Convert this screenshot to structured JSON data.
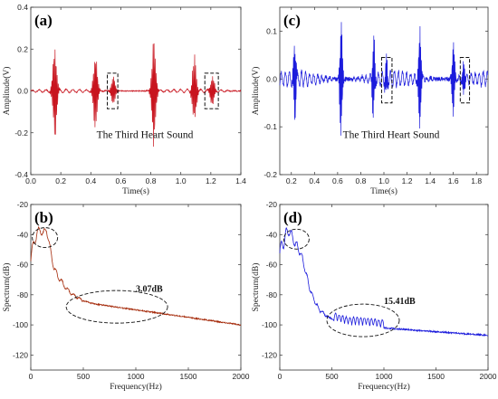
{
  "chart_data": [
    {
      "panel": "(a)",
      "type": "line",
      "color": "#c8141e",
      "xlabel": "Time(s)",
      "ylabel": "Amplitude(V)",
      "xlim": [
        0,
        1.4
      ],
      "ylim": [
        -0.4,
        0.4
      ],
      "xticks": [
        "0.0",
        "0.2",
        "0.4",
        "0.6",
        "0.8",
        "1.0",
        "1.2",
        "1.4"
      ],
      "yticks": [
        "0.4",
        "0.2",
        "0.0",
        "-0.2",
        "-0.4"
      ],
      "annotation": "The Third Heart Sound",
      "beats": [
        {
          "t": 0.16,
          "amp": 0.22
        },
        {
          "t": 0.43,
          "amp": 0.18
        },
        {
          "t": 0.55,
          "amp": 0.07
        },
        {
          "t": 0.82,
          "amp": 0.25
        },
        {
          "t": 1.09,
          "amp": 0.16
        },
        {
          "t": 1.21,
          "amp": 0.07
        }
      ],
      "highlight_boxes_x": [
        [
          0.51,
          0.58
        ],
        [
          1.16,
          1.25
        ]
      ]
    },
    {
      "panel": "(c)",
      "type": "line",
      "color": "#1c1cdc",
      "xlabel": "Time(s)",
      "ylabel": "Amplitude(V)",
      "xlim": [
        0.1,
        1.9
      ],
      "ylim": [
        -0.2,
        0.15
      ],
      "xticks": [
        "0.2",
        "0.4",
        "0.6",
        "0.8",
        "1.0",
        "1.2",
        "1.4",
        "1.6",
        "1.8"
      ],
      "yticks": [
        "0.1",
        "0.0",
        "-0.1",
        "-0.2"
      ],
      "annotation": "The Third Heart Sound",
      "beats": [
        {
          "t": 0.23,
          "amp": 0.09
        },
        {
          "t": 0.63,
          "amp": 0.13
        },
        {
          "t": 0.91,
          "amp": 0.09
        },
        {
          "t": 1.02,
          "amp": 0.04
        },
        {
          "t": 1.31,
          "amp": 0.12
        },
        {
          "t": 1.6,
          "amp": 0.09
        },
        {
          "t": 1.69,
          "amp": 0.04
        }
      ],
      "highlight_boxes_x": [
        [
          0.98,
          1.07
        ],
        [
          1.66,
          1.74
        ]
      ]
    },
    {
      "panel": "(b)",
      "type": "line",
      "color": "#a52a0a",
      "xlabel": "Frequency(Hz)",
      "ylabel": "Spectrum(dB)",
      "xlim": [
        0,
        2000
      ],
      "ylim": [
        -130,
        -20
      ],
      "xticks": [
        "0",
        "500",
        "1000",
        "1500",
        "2000"
      ],
      "yticks": [
        "-20",
        "-40",
        "-60",
        "-80",
        "-100",
        "-120"
      ],
      "annotation": "3.07dB",
      "points": [
        [
          0,
          -58
        ],
        [
          30,
          -44
        ],
        [
          60,
          -40
        ],
        [
          90,
          -36
        ],
        [
          120,
          -40
        ],
        [
          150,
          -36
        ],
        [
          180,
          -48
        ],
        [
          220,
          -62
        ],
        [
          260,
          -68
        ],
        [
          300,
          -72
        ],
        [
          340,
          -76
        ],
        [
          400,
          -80
        ],
        [
          450,
          -82
        ],
        [
          500,
          -84
        ],
        [
          600,
          -86
        ],
        [
          700,
          -87
        ],
        [
          800,
          -88
        ],
        [
          900,
          -89
        ],
        [
          1000,
          -90
        ],
        [
          1200,
          -92
        ],
        [
          1400,
          -94
        ],
        [
          1600,
          -96
        ],
        [
          1800,
          -98
        ],
        [
          2000,
          -100
        ]
      ]
    },
    {
      "panel": "(d)",
      "type": "line",
      "color": "#1c1cdc",
      "xlabel": "Frequency(Hz)",
      "ylabel": "Spectrum(dB)",
      "xlim": [
        0,
        2000
      ],
      "ylim": [
        -130,
        -20
      ],
      "xticks": [
        "0",
        "500",
        "1000",
        "1500",
        "2000"
      ],
      "yticks": [
        "-20",
        "-40",
        "-60",
        "-80",
        "-100",
        "-120"
      ],
      "annotation": "15.41dB",
      "points": [
        [
          0,
          -52
        ],
        [
          30,
          -46
        ],
        [
          60,
          -40
        ],
        [
          90,
          -37
        ],
        [
          120,
          -42
        ],
        [
          150,
          -46
        ],
        [
          200,
          -52
        ],
        [
          240,
          -62
        ],
        [
          280,
          -74
        ],
        [
          320,
          -82
        ],
        [
          380,
          -90
        ],
        [
          450,
          -94
        ],
        [
          500,
          -96
        ],
        [
          550,
          -98
        ],
        [
          650,
          -100
        ],
        [
          750,
          -100
        ],
        [
          900,
          -101
        ],
        [
          1000,
          -102
        ],
        [
          1200,
          -103
        ],
        [
          1400,
          -104
        ],
        [
          1600,
          -105
        ],
        [
          1800,
          -106
        ],
        [
          2000,
          -107
        ]
      ]
    }
  ]
}
